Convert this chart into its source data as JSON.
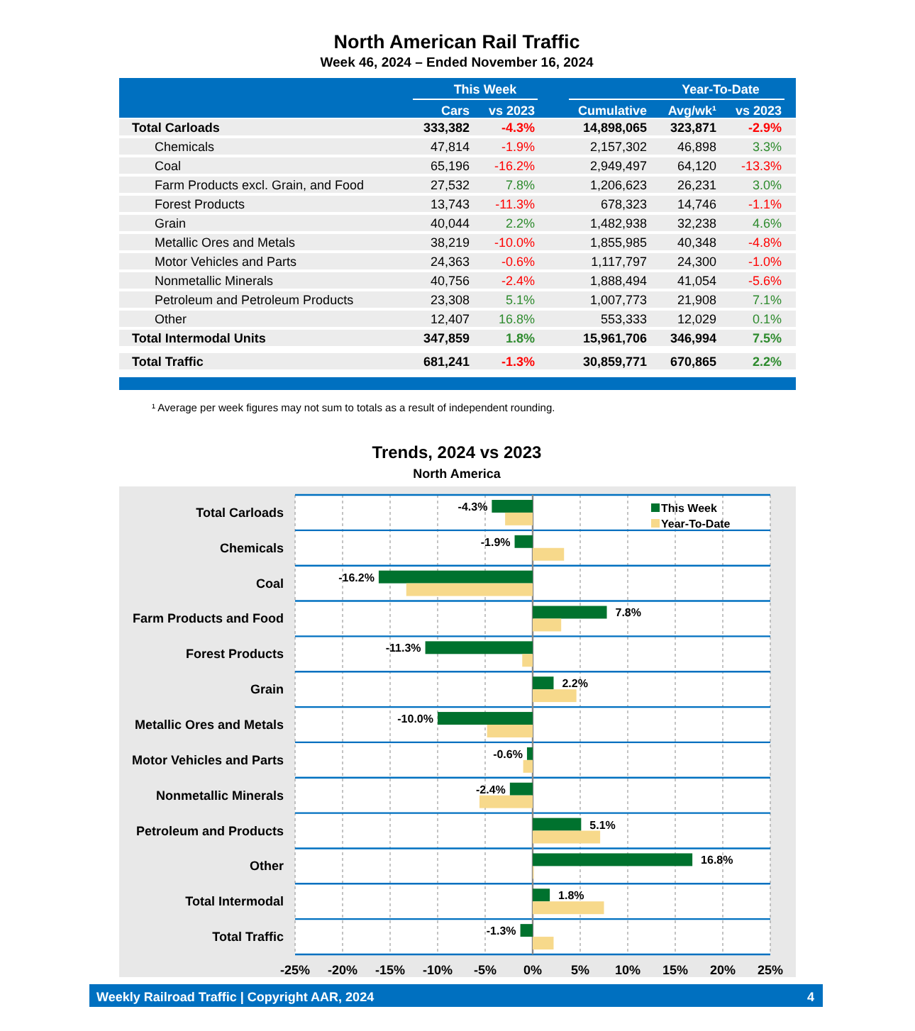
{
  "chart_data": [
    {
      "type": "other",
      "title": "North American Rail Traffic",
      "subtitle": "Week 46, 2024 – Ended November 16, 2024",
      "categories": [
        "Total Carloads",
        "Chemicals",
        "Coal",
        "Farm Products excl. Grain, and Food",
        "Forest Products",
        "Grain",
        "Metallic Ores and Metals",
        "Motor Vehicles and Parts",
        "Nonmetallic Minerals",
        "Petroleum and Petroleum Products",
        "Other",
        "Total Intermodal Units",
        "Total Traffic"
      ],
      "series": [
        {
          "name": "Cars",
          "values": [
            333382,
            47814,
            65196,
            27532,
            13743,
            40044,
            38219,
            24363,
            40756,
            23308,
            12407,
            347859,
            681241
          ],
          "value_labels": [
            "333,382",
            "47,814",
            "65,196",
            "27,532",
            "13,743",
            "40,044",
            "38,219",
            "24,363",
            "40,756",
            "23,308",
            "12,407",
            "347,859",
            "681,241"
          ]
        },
        {
          "name": "vs 2023",
          "values": [
            -4.3,
            -1.9,
            -16.2,
            7.8,
            -11.3,
            2.2,
            -10.0,
            -0.6,
            -2.4,
            5.1,
            16.8,
            1.8,
            -1.3
          ],
          "value_labels": [
            "-4.3%",
            "-1.9%",
            "-16.2%",
            "7.8%",
            "-11.3%",
            "2.2%",
            "-10.0%",
            "-0.6%",
            "-2.4%",
            "5.1%",
            "16.8%",
            "1.8%",
            "-1.3%"
          ],
          "colors": [
            "#ff0000",
            "#ff0000",
            "#ff0000",
            "#2e8b2e",
            "#ff0000",
            "#2e8b2e",
            "#ff0000",
            "#ff0000",
            "#ff0000",
            "#2e8b2e",
            "#2e8b2e",
            "#2e8b2e",
            "#ff0000"
          ]
        },
        {
          "name": "Cumulative",
          "values": [
            14898065,
            2157302,
            2949497,
            1206623,
            678323,
            1482938,
            1855985,
            1117797,
            1888494,
            1007773,
            553333,
            15961706,
            30859771
          ],
          "value_labels": [
            "14,898,065",
            "2,157,302",
            "2,949,497",
            "1,206,623",
            "678,323",
            "1,482,938",
            "1,855,985",
            "1,117,797",
            "1,888,494",
            "1,007,773",
            "553,333",
            "15,961,706",
            "30,859,771"
          ]
        },
        {
          "name": "Avg/wk¹",
          "values": [
            323871,
            46898,
            64120,
            26231,
            14746,
            32238,
            40348,
            24300,
            41054,
            21908,
            12029,
            346994,
            670865
          ],
          "value_labels": [
            "323,871",
            "46,898",
            "64,120",
            "26,231",
            "14,746",
            "32,238",
            "40,348",
            "24,300",
            "41,054",
            "21,908",
            "12,029",
            "346,994",
            "670,865"
          ]
        },
        {
          "name": "vs 2023",
          "values": [
            -2.9,
            3.3,
            -13.3,
            3.0,
            -1.1,
            4.6,
            -4.8,
            -1.0,
            -5.6,
            7.1,
            0.1,
            7.5,
            2.2
          ],
          "value_labels": [
            "-2.9%",
            "3.3%",
            "-13.3%",
            "3.0%",
            "-1.1%",
            "4.6%",
            "-4.8%",
            "-1.0%",
            "-5.6%",
            "7.1%",
            "0.1%",
            "7.5%",
            "2.2%"
          ],
          "colors": [
            "#ff0000",
            "#2e8b2e",
            "#ff0000",
            "#2e8b2e",
            "#ff0000",
            "#2e8b2e",
            "#ff0000",
            "#ff0000",
            "#ff0000",
            "#2e8b2e",
            "#2e8b2e",
            "#2e8b2e",
            "#2e8b2e"
          ]
        }
      ],
      "annotations": [
        "This Week",
        "Year-To-Date",
        "¹ Average per week figures may not sum to totals as a result of independent rounding."
      ]
    },
    {
      "type": "bar",
      "orientation": "horizontal",
      "title": "Trends, 2024 vs 2023",
      "subtitle": "North America",
      "categories": [
        "Total Carloads",
        "Chemicals",
        "Coal",
        "Farm Products and Food",
        "Forest Products",
        "Grain",
        "Metallic Ores and Metals",
        "Motor Vehicles and Parts",
        "Nonmetallic Minerals",
        "Petroleum and Products",
        "Other",
        "Total Intermodal",
        "Total Traffic"
      ],
      "series": [
        {
          "name": "This Week",
          "color": "#00722e",
          "values": [
            -4.3,
            -1.9,
            -16.2,
            7.8,
            -11.3,
            2.2,
            -10.0,
            -0.6,
            -2.4,
            5.1,
            16.8,
            1.8,
            -1.3
          ],
          "value_labels": [
            "-4.3%",
            "-1.9%",
            "-16.2%",
            "7.8%",
            "-11.3%",
            "2.2%",
            "-10.0%",
            "-0.6%",
            "-2.4%",
            "5.1%",
            "16.8%",
            "1.8%",
            "-1.3%"
          ]
        },
        {
          "name": "Year-To-Date",
          "color": "#f7d98b",
          "values": [
            -2.9,
            3.3,
            -13.3,
            3.0,
            -1.1,
            4.6,
            -4.8,
            -1.0,
            -5.6,
            7.1,
            0.1,
            7.5,
            2.2
          ]
        }
      ],
      "xlim": [
        -25,
        25
      ],
      "xticks": [
        {
          "value": -25,
          "label": "-25%"
        },
        {
          "value": -20,
          "label": "-20%"
        },
        {
          "value": -15,
          "label": "-15%"
        },
        {
          "value": -10,
          "label": "-10%"
        },
        {
          "value": -5,
          "label": "-5%"
        },
        {
          "value": 0,
          "label": "0%"
        },
        {
          "value": 5,
          "label": "5%"
        },
        {
          "value": 10,
          "label": "10%"
        },
        {
          "value": 15,
          "label": "15%"
        },
        {
          "value": 20,
          "label": "20%"
        },
        {
          "value": 25,
          "label": "25%"
        }
      ],
      "grid": "x",
      "legend": "top right",
      "annotations": [
        "Weekly Railroad Traffic | Copyright AAR, 2024",
        "4"
      ]
    }
  ]
}
